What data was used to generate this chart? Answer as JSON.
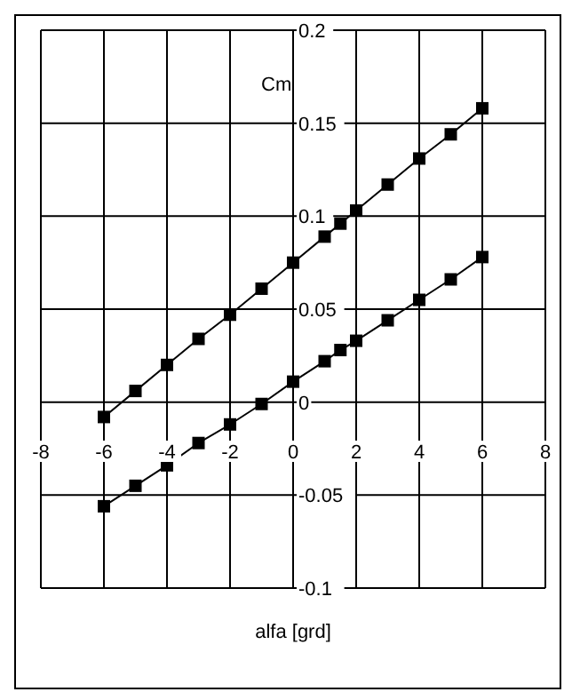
{
  "chart_data": {
    "type": "line",
    "xlabel": "alfa [grd]",
    "ylabel": "Cm",
    "series": [
      {
        "color": "#000000",
        "x": [
          -6,
          -5,
          -4,
          -3,
          -2,
          -1,
          0,
          1,
          1.5,
          2,
          3,
          4,
          5,
          6
        ],
        "values": [
          -0.056,
          -0.045,
          -0.034,
          -0.022,
          -0.012,
          -0.001,
          0.011,
          0.022,
          0.028,
          0.033,
          0.044,
          0.055,
          0.066,
          0.078
        ]
      },
      {
        "color": "#000000",
        "x": [
          -6,
          -5,
          -4,
          -3,
          -2,
          -1,
          0,
          1,
          1.5,
          2,
          3,
          4,
          5,
          6
        ],
        "values": [
          -0.008,
          0.006,
          0.02,
          0.034,
          0.047,
          0.061,
          0.075,
          0.089,
          0.096,
          0.103,
          0.117,
          0.131,
          0.144,
          0.158
        ]
      }
    ],
    "xlim": [
      -8,
      8
    ],
    "xticks": [
      -8,
      -6,
      -4,
      -2,
      0,
      2,
      4,
      6,
      8
    ],
    "ylim": [
      -0.1,
      0.2
    ],
    "yticks": [
      -0.1,
      -0.05,
      0,
      0.05,
      0.1,
      0.15,
      0.2
    ],
    "grid": true,
    "marker": "square",
    "line_style": "solid"
  }
}
